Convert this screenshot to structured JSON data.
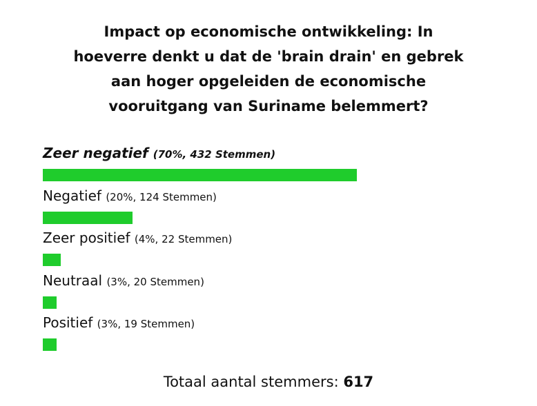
{
  "poll": {
    "title_lines": [
      "Impact op economische ontwikkeling: In",
      "hoeverre denkt u dat de 'brain drain' en gebrek",
      "aan hoger opgeleiden de economische",
      "vooruitgang van Suriname belemmert?"
    ],
    "bar_color": "#1fcc2c",
    "options": [
      {
        "label": "Zeer negatief",
        "detail": "(70%, 432 Stemmen)",
        "percent": 70,
        "winner": true
      },
      {
        "label": "Negatief",
        "detail": "(20%, 124 Stemmen)",
        "percent": 20,
        "winner": false
      },
      {
        "label": "Zeer positief",
        "detail": "(4%, 22 Stemmen)",
        "percent": 4,
        "winner": false
      },
      {
        "label": "Neutraal",
        "detail": "(3%, 20 Stemmen)",
        "percent": 3,
        "winner": false
      },
      {
        "label": "Positief",
        "detail": "(3%, 19 Stemmen)",
        "percent": 3,
        "winner": false
      }
    ],
    "total": {
      "label": "Totaal aantal stemmers:",
      "value": 617
    }
  }
}
